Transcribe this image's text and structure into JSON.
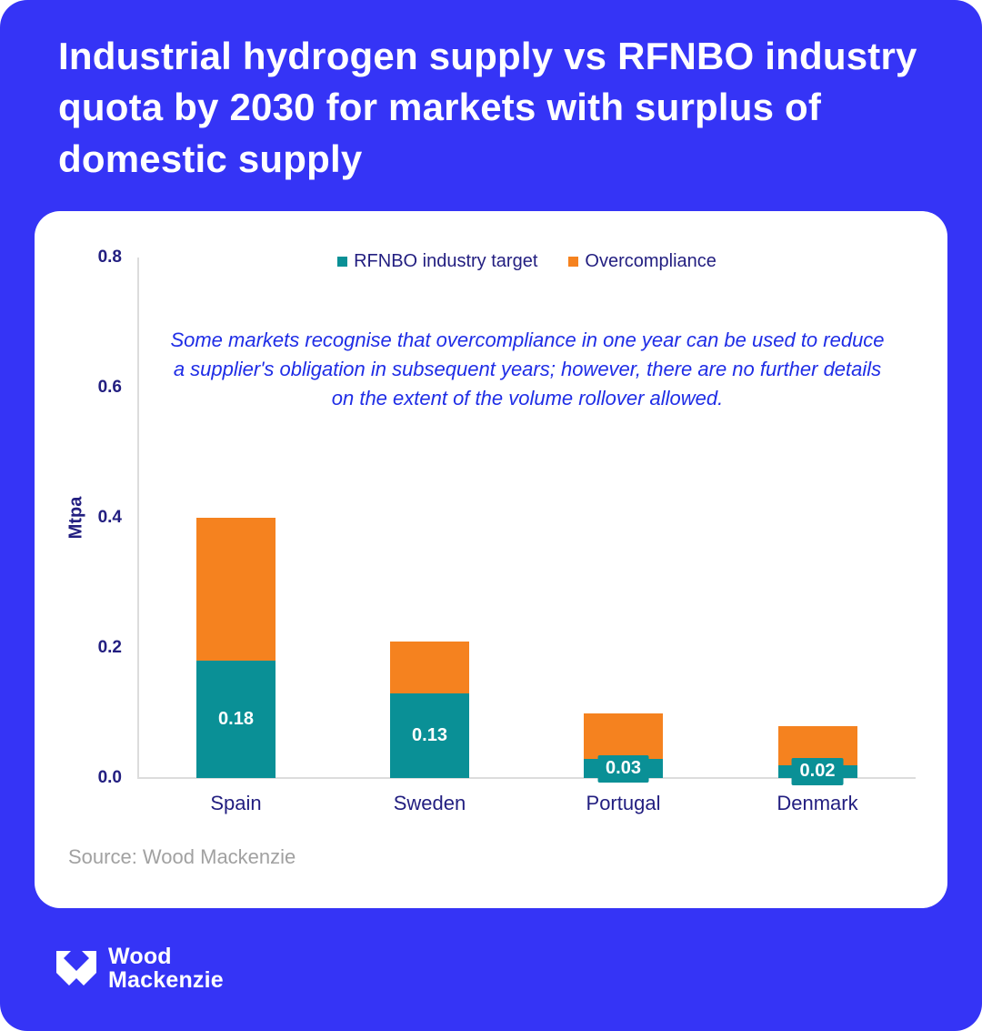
{
  "page": {
    "title": "Industrial hydrogen supply vs RFNBO industry quota by 2030 for markets with surplus of domestic supply",
    "source": "Source: Wood Mackenzie",
    "logo": {
      "line1": "Wood",
      "line2": "Mackenzie",
      "mark": "wood-mackenzie-monogram"
    }
  },
  "colors": {
    "background_blue": "#3534F6",
    "teal": "#0A9096",
    "orange": "#F5821F",
    "navy_text": "#221E80",
    "annotation_blue": "#1F2DE6",
    "axis_gray": "#DCDCDC",
    "source_gray": "#A1A1A1",
    "card_white": "#FFFFFF"
  },
  "chart_data": {
    "type": "bar",
    "stacked": true,
    "title": "",
    "xlabel": "",
    "ylabel": "Mtpa",
    "ylim": [
      0,
      0.8
    ],
    "yticks": [
      "0.0",
      "0.2",
      "0.4",
      "0.6",
      "0.8"
    ],
    "grid": false,
    "legend_position": "top-center",
    "categories": [
      "Spain",
      "Sweden",
      "Portugal",
      "Denmark"
    ],
    "series": [
      {
        "name": "RFNBO industry target",
        "color": "#0A9096",
        "values": [
          0.18,
          0.13,
          0.03,
          0.02
        ]
      },
      {
        "name": "Overcompliance",
        "color": "#F5821F",
        "values": [
          0.22,
          0.08,
          0.07,
          0.06
        ]
      }
    ],
    "stack_totals": [
      0.4,
      0.21,
      0.1,
      0.08
    ],
    "bar_labels": [
      "0.18",
      "0.13",
      "0.03",
      "0.02"
    ],
    "annotation": "Some markets recognise that overcompliance in one year can be used to reduce a supplier's obligation in subsequent years; however, there are no further details on the extent of the volume rollover allowed."
  }
}
